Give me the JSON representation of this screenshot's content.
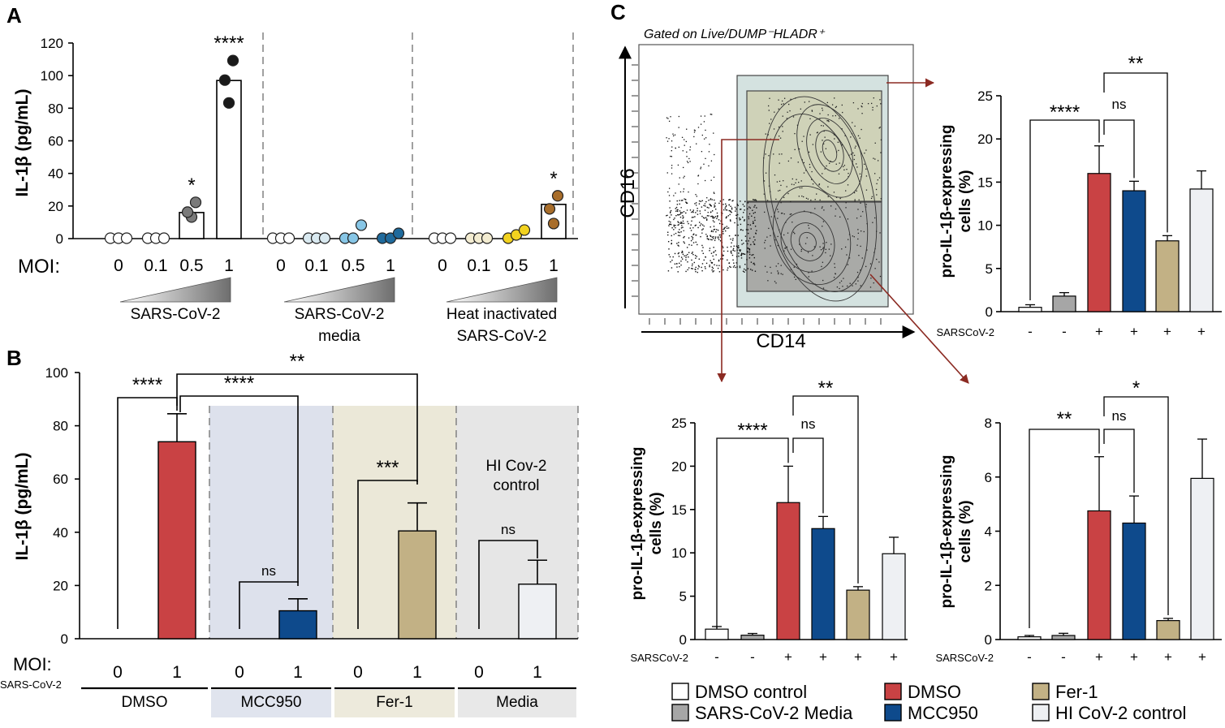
{
  "colors": {
    "dmso": "#c94244",
    "mcc950": "#0e4a8c",
    "fer1": "#c2b185",
    "grey": "#a6a6a6",
    "hi": "#eef0f3",
    "white": "#ffffff",
    "panelMcc": "#dde1ec",
    "panelFer": "#ebe8d8",
    "panelMedia": "#e6e6e6",
    "arrow": "#8b2a22",
    "gateTeal": "#d4e2e0",
    "gateTop": "#cfd2b8",
    "gateBottom": "#a9aaa7"
  },
  "panel_labels": {
    "a": "A",
    "b": "B",
    "c": "C"
  },
  "chart_data": [
    {
      "id": "A",
      "type": "bar",
      "ylabel": "IL-1β (pg/mL)",
      "ylim": [
        0,
        120
      ],
      "yticks": [
        0,
        20,
        40,
        60,
        80,
        100,
        120
      ],
      "xlabel_prefix": "MOI:",
      "groups": [
        {
          "name": "SARS-CoV-2",
          "name_lines": [
            "SARS-CoV-2"
          ],
          "categories": [
            "0",
            "0.1",
            "0.5",
            "1"
          ],
          "values": [
            0,
            0,
            16,
            97
          ],
          "points": [
            [
              0,
              0,
              0
            ],
            [
              0,
              0,
              0
            ],
            [
              13,
              16,
              22
            ],
            [
              83,
              97,
              109
            ]
          ],
          "point_colors": [
            "#ffffff",
            "#ffffff",
            "#7a7a7a",
            "#1a1a1a"
          ],
          "bars_shown": [
            false,
            false,
            true,
            true
          ],
          "stars": [
            "",
            "",
            "*",
            "****"
          ]
        },
        {
          "name": "SARS-CoV-2 media",
          "name_lines": [
            "SARS-CoV-2",
            "media"
          ],
          "categories": [
            "0",
            "0.1",
            "0.5",
            "1"
          ],
          "values": [
            0,
            0,
            0,
            0
          ],
          "points": [
            [
              0,
              0,
              0
            ],
            [
              0,
              0,
              0
            ],
            [
              0,
              0,
              8
            ],
            [
              0,
              0,
              3
            ]
          ],
          "point_colors": [
            "#ffffff",
            "#d9e9f0",
            "#87c6e6",
            "#1f6a9c"
          ],
          "bars_shown": [
            false,
            false,
            false,
            false
          ],
          "stars": [
            "",
            "",
            "",
            ""
          ]
        },
        {
          "name": "Heat inactivated SARS-CoV-2",
          "name_lines": [
            "Heat inactivated",
            "SARS-CoV-2"
          ],
          "categories": [
            "0",
            "0.1",
            "0.5",
            "1"
          ],
          "values": [
            0,
            0,
            0,
            21
          ],
          "points": [
            [
              0,
              0,
              0
            ],
            [
              0,
              0,
              0
            ],
            [
              0,
              2,
              5
            ],
            [
              9,
              18,
              26
            ]
          ],
          "point_colors": [
            "#ffffff",
            "#f3ecd1",
            "#f2d21f",
            "#a86d2a"
          ],
          "bars_shown": [
            false,
            false,
            false,
            true
          ],
          "stars": [
            "",
            "",
            "",
            "*"
          ]
        }
      ]
    },
    {
      "id": "B",
      "type": "bar",
      "ylabel": "IL-1β (pg/mL)",
      "ylim": [
        0,
        100
      ],
      "yticks": [
        0,
        20,
        40,
        60,
        80,
        100
      ],
      "xlabel_prefix": "MOI:",
      "xlabel_sub": "SARS-CoV-2",
      "inset_label_lines": [
        "HI Cov-2",
        "control"
      ],
      "groups": [
        {
          "name": "DMSO",
          "moi": [
            "0",
            "1"
          ],
          "values": [
            0,
            74
          ],
          "errors": [
            0,
            10.5
          ],
          "color": "#c94244"
        },
        {
          "name": "MCC950",
          "moi": [
            "0",
            "1"
          ],
          "values": [
            0,
            10.5
          ],
          "errors": [
            0,
            4.5
          ],
          "color": "#0e4a8c"
        },
        {
          "name": "Fer-1",
          "moi": [
            "0",
            "1"
          ],
          "values": [
            0,
            40.5
          ],
          "errors": [
            0,
            10.5
          ],
          "color": "#c2b185"
        },
        {
          "name": "Media",
          "moi": [
            "0",
            "1"
          ],
          "values": [
            0,
            20.5
          ],
          "errors": [
            0,
            9
          ],
          "color": "#eef0f3"
        }
      ],
      "comparisons": [
        {
          "label": "****",
          "from": "DMSO 0",
          "to": "DMSO 1"
        },
        {
          "label": "****",
          "from": "DMSO 1",
          "to": "MCC950 1"
        },
        {
          "label": "**",
          "from": "DMSO 1",
          "to": "Fer-1 1"
        },
        {
          "label": "ns",
          "from": "MCC950 0",
          "to": "MCC950 1"
        },
        {
          "label": "***",
          "from": "Fer-1 0",
          "to": "Fer-1 1"
        },
        {
          "label": "ns",
          "from": "Media 0",
          "to": "Media 1"
        }
      ]
    },
    {
      "id": "C-flow",
      "type": "scatter",
      "title": "Gated on Live/DUMP⁻HLADR⁺",
      "xlabel": "CD14",
      "ylabel": "CD16"
    },
    {
      "id": "C-top",
      "type": "bar",
      "ylabel_lines": [
        "pro-IL-1β-expressing",
        "cells (%)"
      ],
      "ylim": [
        0,
        25
      ],
      "yticks": [
        0,
        5,
        10,
        15,
        20,
        25
      ],
      "row_label": "SARSCoV-2",
      "categories": [
        "DMSO control",
        "SARS-CoV-2 Media",
        "DMSO",
        "MCC950",
        "Fer-1",
        "HI CoV-2 control"
      ],
      "treatment": [
        "-",
        "-",
        "+",
        "+",
        "+",
        "+"
      ],
      "values": [
        0.5,
        1.8,
        16,
        14,
        8.2,
        14.2
      ],
      "errors": [
        0.3,
        0.4,
        3.2,
        1.1,
        0.6,
        2.1
      ],
      "comparisons": [
        {
          "label": "****",
          "from": 0,
          "to": 2
        },
        {
          "label": "ns",
          "from": 2,
          "to": 3
        },
        {
          "label": "**",
          "from": 2,
          "to": 4
        }
      ]
    },
    {
      "id": "C-bottom-left",
      "type": "bar",
      "ylabel_lines": [
        "pro-IL-1β-expressing",
        "cells (%)"
      ],
      "ylim": [
        0,
        25
      ],
      "yticks": [
        0,
        5,
        10,
        15,
        20,
        25
      ],
      "row_label": "SARSCoV-2",
      "categories": [
        "DMSO control",
        "SARS-CoV-2 Media",
        "DMSO",
        "MCC950",
        "Fer-1",
        "HI CoV-2 control"
      ],
      "treatment": [
        "-",
        "-",
        "+",
        "+",
        "+",
        "+"
      ],
      "values": [
        1.2,
        0.5,
        15.8,
        12.8,
        5.7,
        9.9
      ],
      "errors": [
        0.3,
        0.2,
        4.2,
        1.4,
        0.4,
        1.9
      ],
      "comparisons": [
        {
          "label": "****",
          "from": 0,
          "to": 2
        },
        {
          "label": "ns",
          "from": 2,
          "to": 3
        },
        {
          "label": "**",
          "from": 2,
          "to": 4
        }
      ]
    },
    {
      "id": "C-bottom-right",
      "type": "bar",
      "ylabel_lines": [
        "pro-IL-1β-expressing",
        "cells (%)"
      ],
      "ylim": [
        0,
        8
      ],
      "yticks": [
        0,
        2,
        4,
        6,
        8
      ],
      "row_label": "SARSCoV-2",
      "categories": [
        "DMSO control",
        "SARS-CoV-2 Media",
        "DMSO",
        "MCC950",
        "Fer-1",
        "HI CoV-2 control"
      ],
      "treatment": [
        "-",
        "-",
        "+",
        "+",
        "+",
        "+"
      ],
      "values": [
        0.1,
        0.15,
        4.75,
        4.3,
        0.7,
        5.95
      ],
      "errors": [
        0.05,
        0.08,
        2.0,
        1.0,
        0.08,
        1.45
      ],
      "comparisons": [
        {
          "label": "**",
          "from": 0,
          "to": 2
        },
        {
          "label": "ns",
          "from": 2,
          "to": 3
        },
        {
          "label": "*",
          "from": 2,
          "to": 4
        }
      ]
    }
  ],
  "legend": [
    {
      "label": "DMSO control",
      "color": "#ffffff"
    },
    {
      "label": "SARS-CoV-2 Media",
      "color": "#a6a6a6"
    },
    {
      "label": "DMSO",
      "color": "#c94244"
    },
    {
      "label": "MCC950",
      "color": "#0e4a8c"
    },
    {
      "label": "Fer-1",
      "color": "#c2b185"
    },
    {
      "label": "HI CoV-2 control",
      "color": "#eef0f3"
    }
  ]
}
